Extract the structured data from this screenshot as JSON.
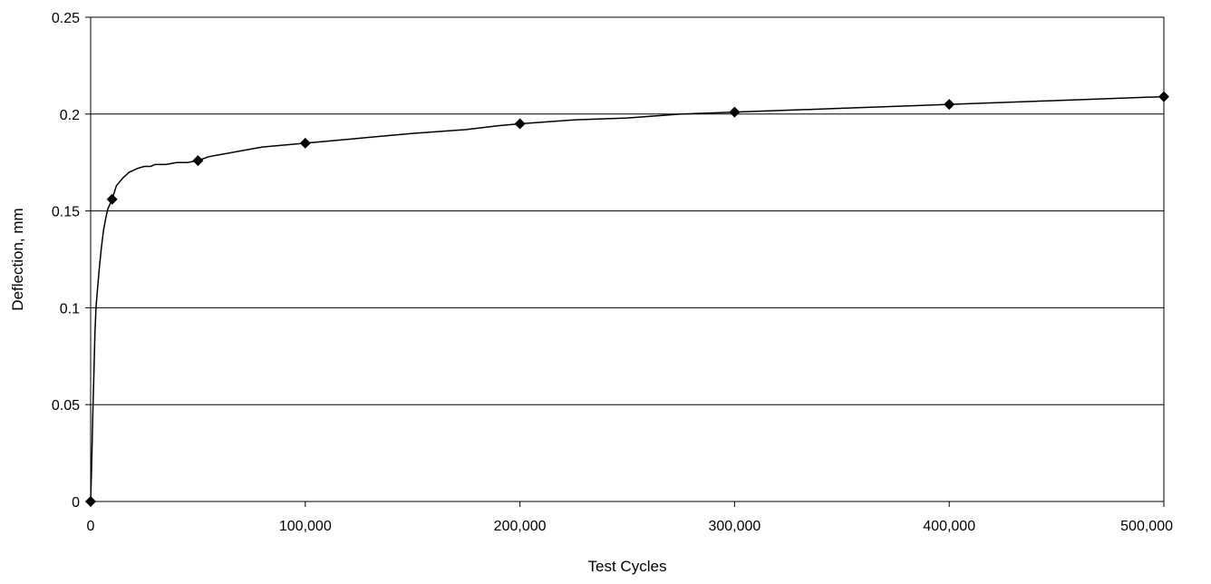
{
  "chart_data": {
    "type": "line",
    "title": "",
    "xlabel": "Test Cycles",
    "ylabel": "Deflection, mm",
    "xlim": [
      0,
      500000
    ],
    "ylim": [
      0,
      0.25
    ],
    "x_ticks": [
      0,
      100000,
      200000,
      300000,
      400000,
      500000
    ],
    "x_tick_labels": [
      "0",
      "100,000",
      "200,000",
      "300,000",
      "400,000",
      "500,000"
    ],
    "y_ticks": [
      0,
      0.05,
      0.1,
      0.15,
      0.2,
      0.25
    ],
    "y_tick_labels": [
      "0",
      "0.05",
      "0.1",
      "0.15",
      "0.2",
      "0.25"
    ],
    "grid": "horizontal",
    "legend": "none",
    "series": [
      {
        "color": "#000000",
        "marker": "diamond",
        "curve": {
          "x": [
            0,
            500,
            1000,
            1500,
            2000,
            2500,
            3000,
            4000,
            5000,
            6000,
            7000,
            8000,
            10000,
            12000,
            15000,
            18000,
            22000,
            25000,
            28000,
            30000,
            35000,
            40000,
            45000,
            50000,
            55000,
            60000,
            70000,
            80000,
            90000,
            100000,
            110000,
            120000,
            130000,
            150000,
            175000,
            190000,
            200000,
            225000,
            250000,
            275000,
            300000,
            350000,
            400000,
            450000,
            500000
          ],
          "y": [
            0,
            0.02,
            0.045,
            0.065,
            0.087,
            0.1,
            0.107,
            0.12,
            0.131,
            0.14,
            0.146,
            0.151,
            0.156,
            0.163,
            0.167,
            0.17,
            0.172,
            0.173,
            0.173,
            0.174,
            0.174,
            0.175,
            0.175,
            0.176,
            0.178,
            0.179,
            0.181,
            0.183,
            0.184,
            0.185,
            0.186,
            0.187,
            0.188,
            0.19,
            0.192,
            0.194,
            0.195,
            0.197,
            0.198,
            0.2,
            0.201,
            0.203,
            0.205,
            0.207,
            0.209
          ]
        },
        "markers": {
          "x": [
            0,
            10000,
            50000,
            100000,
            200000,
            300000,
            400000,
            500000
          ],
          "y": [
            0,
            0.156,
            0.176,
            0.185,
            0.195,
            0.201,
            0.205,
            0.209
          ]
        }
      }
    ]
  }
}
